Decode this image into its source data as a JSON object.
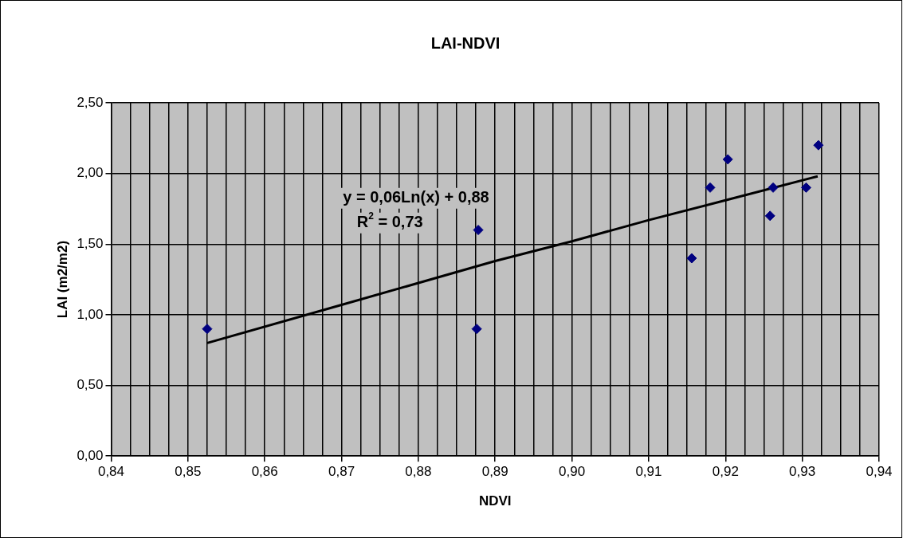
{
  "chart_data": {
    "type": "scatter",
    "title": "LAI-NDVI",
    "xlabel": "NDVI",
    "ylabel": "LAI (m2/m2)",
    "annotations": [
      "y = 0,06Ln(x) + 0,88",
      "R$^{2}$ = 0,73"
    ],
    "series": [
      {
        "type": "scatter",
        "color": "#000080",
        "marker": "diamond",
        "x": [
          0.8525,
          0.8878,
          0.8876,
          0.9156,
          0.918,
          0.9203,
          0.9258,
          0.9262,
          0.9305,
          0.9321
        ],
        "values": [
          0.9,
          1.6,
          0.9,
          1.4,
          1.9,
          2.1,
          1.7,
          1.9,
          1.9,
          2.2
        ]
      },
      {
        "type": "line",
        "color": "#000000",
        "marker": "none",
        "x": [
          0.8525,
          0.87,
          0.89,
          0.9,
          0.91,
          0.92,
          0.932
        ],
        "values": [
          0.8,
          1.07,
          1.38,
          1.52,
          1.67,
          1.81,
          1.98
        ]
      }
    ],
    "xlim": [
      0.84,
      0.94
    ],
    "ylim": [
      0,
      2.5
    ],
    "xticks": [
      {
        "value": 0.84,
        "label": "0,84"
      },
      {
        "value": 0.8425,
        "label": null
      },
      {
        "value": 0.845,
        "label": null
      },
      {
        "value": 0.8475,
        "label": null
      },
      {
        "value": 0.85,
        "label": "0,85"
      },
      {
        "value": 0.8525,
        "label": null
      },
      {
        "value": 0.855,
        "label": null
      },
      {
        "value": 0.8575,
        "label": null
      },
      {
        "value": 0.86,
        "label": "0,86"
      },
      {
        "value": 0.8625,
        "label": null
      },
      {
        "value": 0.865,
        "label": null
      },
      {
        "value": 0.8675,
        "label": null
      },
      {
        "value": 0.87,
        "label": "0,87"
      },
      {
        "value": 0.8725,
        "label": null
      },
      {
        "value": 0.875,
        "label": null
      },
      {
        "value": 0.8775,
        "label": null
      },
      {
        "value": 0.88,
        "label": "0,88"
      },
      {
        "value": 0.8825,
        "label": null
      },
      {
        "value": 0.885,
        "label": null
      },
      {
        "value": 0.8875,
        "label": null
      },
      {
        "value": 0.89,
        "label": "0,89"
      },
      {
        "value": 0.8925,
        "label": null
      },
      {
        "value": 0.895,
        "label": null
      },
      {
        "value": 0.8975,
        "label": null
      },
      {
        "value": 0.9,
        "label": "0,90"
      },
      {
        "value": 0.9025,
        "label": null
      },
      {
        "value": 0.905,
        "label": null
      },
      {
        "value": 0.9075,
        "label": null
      },
      {
        "value": 0.91,
        "label": "0,91"
      },
      {
        "value": 0.9125,
        "label": null
      },
      {
        "value": 0.915,
        "label": null
      },
      {
        "value": 0.9175,
        "label": null
      },
      {
        "value": 0.92,
        "label": "0,92"
      },
      {
        "value": 0.9225,
        "label": null
      },
      {
        "value": 0.925,
        "label": null
      },
      {
        "value": 0.9275,
        "label": null
      },
      {
        "value": 0.93,
        "label": "0,93"
      },
      {
        "value": 0.9325,
        "label": null
      },
      {
        "value": 0.935,
        "label": null
      },
      {
        "value": 0.9375,
        "label": null
      },
      {
        "value": 0.94,
        "label": "0,94"
      }
    ],
    "yticks": [
      {
        "value": 0,
        "label": "0,00"
      },
      {
        "value": 0.5,
        "label": "0,50"
      },
      {
        "value": 1,
        "label": "1,00"
      },
      {
        "value": 1.5,
        "label": "1,50"
      },
      {
        "value": 2,
        "label": "2,00"
      },
      {
        "value": 2.5,
        "label": "2,50"
      }
    ],
    "grid": true,
    "legend": false
  }
}
